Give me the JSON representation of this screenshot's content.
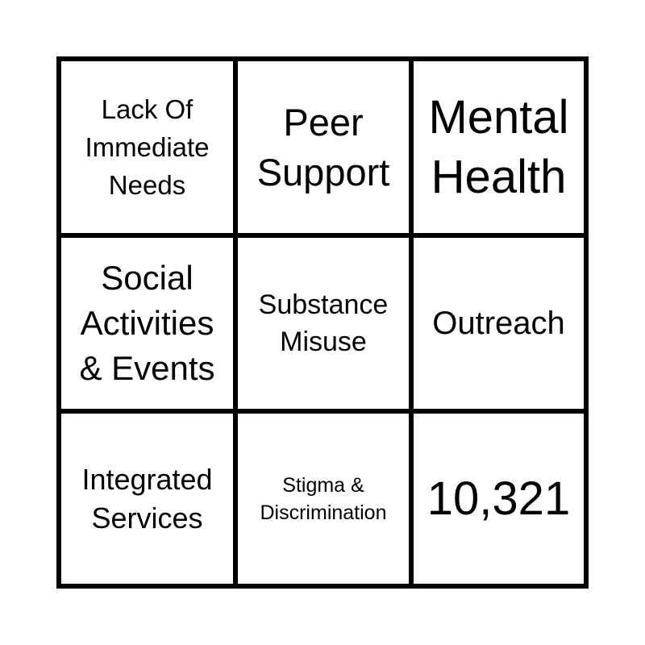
{
  "cells": [
    {
      "text": "Lack Of Immediate Needs",
      "font": 33,
      "lh": 47
    },
    {
      "text": "Peer Support",
      "font": 47,
      "lh": 62
    },
    {
      "text": "Mental Health",
      "font": 58,
      "lh": 74
    },
    {
      "text": "Social Activities & Events",
      "font": 42,
      "lh": 56
    },
    {
      "text": "Substance Misuse",
      "font": 34,
      "lh": 46
    },
    {
      "text": "Outreach",
      "font": 40,
      "lh": 48
    },
    {
      "text": "Integrated Services",
      "font": 36,
      "lh": 48
    },
    {
      "text": "Stigma & Discrimination",
      "font": 25,
      "lh": 34
    },
    {
      "text": "10,321",
      "font": 58,
      "lh": 70
    }
  ]
}
